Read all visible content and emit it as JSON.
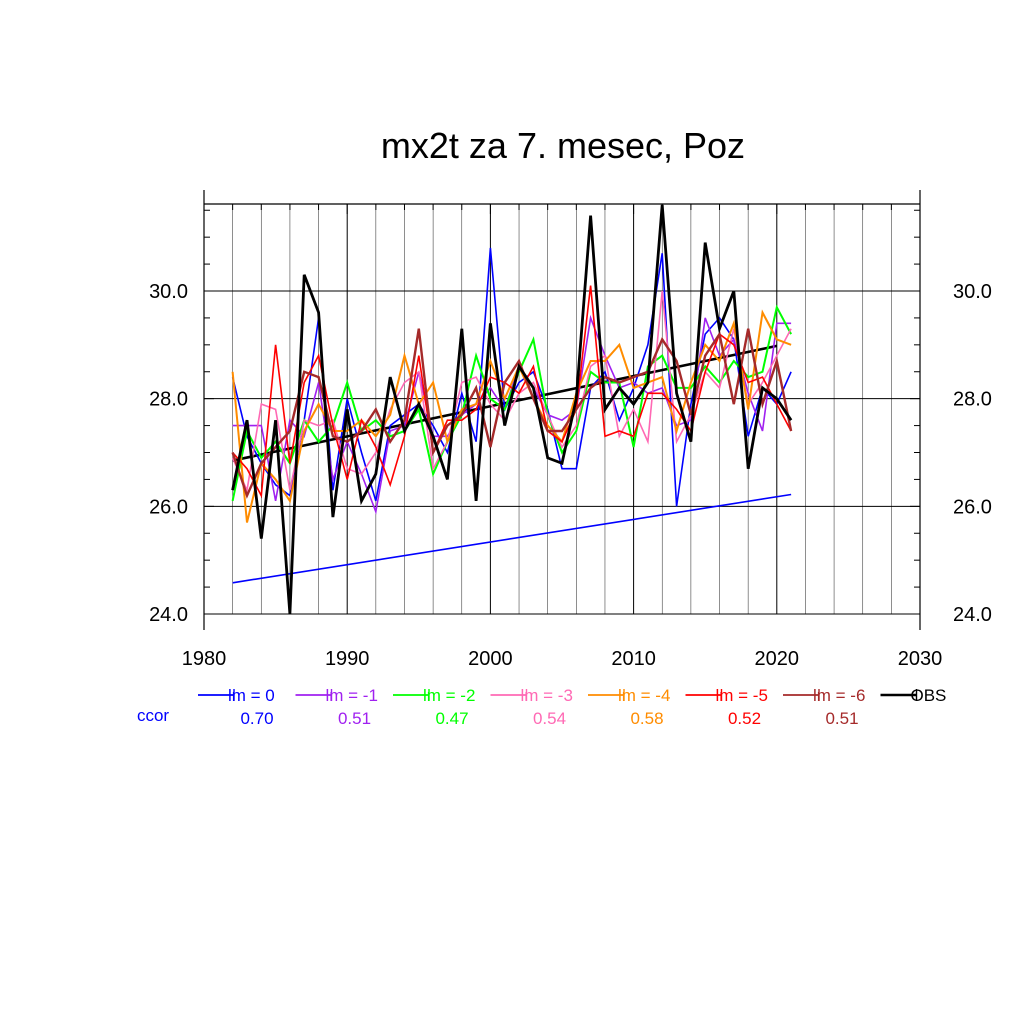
{
  "chart_data": {
    "type": "line",
    "title": "mx2t za 7. mesec, Poz",
    "xlabel": "",
    "ylabel": "",
    "xlim": [
      1980,
      2030
    ],
    "ylim": [
      24.0,
      31.6
    ],
    "x_ticks": [
      1980,
      1990,
      2000,
      2010,
      2020,
      2030
    ],
    "y_ticks": [
      24.0,
      26.0,
      28.0,
      30.0
    ],
    "y_tick_labels": [
      "24.0",
      "26.0",
      "28.0",
      "30.0"
    ],
    "grid": true,
    "x": [
      1982,
      1983,
      1984,
      1985,
      1986,
      1987,
      1988,
      1989,
      1990,
      1991,
      1992,
      1993,
      1994,
      1995,
      1996,
      1997,
      1998,
      1999,
      2000,
      2001,
      2002,
      2003,
      2004,
      2005,
      2006,
      2007,
      2008,
      2009,
      2010,
      2011,
      2012,
      2013,
      2014,
      2015,
      2016,
      2017,
      2018,
      2019,
      2020,
      2021
    ],
    "series": [
      {
        "name": "lm = 0",
        "color": "#0000ff",
        "width": 1.6,
        "values": [
          28.4,
          27.3,
          26.8,
          26.4,
          26.2,
          27.6,
          29.5,
          26.3,
          28.0,
          27.0,
          26.1,
          27.5,
          27.7,
          27.9,
          27.5,
          27.0,
          28.1,
          27.2,
          30.8,
          27.8,
          28.3,
          28.5,
          27.8,
          26.7,
          26.7,
          28.2,
          28.5,
          27.6,
          28.2,
          29.0,
          30.7,
          26.0,
          27.9,
          29.2,
          29.5,
          29.1,
          27.3,
          28.2,
          27.9,
          28.5
        ]
      },
      {
        "name": "lm = -1",
        "color": "#a020f0",
        "width": 1.6,
        "values": [
          27.5,
          27.5,
          27.5,
          26.1,
          27.6,
          27.3,
          28.3,
          26.5,
          27.2,
          26.6,
          25.9,
          27.4,
          27.5,
          28.5,
          27.3,
          27.3,
          27.7,
          27.9,
          28.2,
          27.8,
          28.6,
          28.2,
          27.7,
          27.6,
          27.8,
          29.5,
          28.8,
          28.2,
          28.3,
          28.1,
          28.2,
          27.5,
          27.6,
          29.5,
          28.8,
          29.1,
          28.1,
          27.4,
          29.4,
          29.4
        ]
      },
      {
        "name": "lm = -2",
        "color": "#00ff00",
        "width": 2.0,
        "values": [
          26.1,
          27.4,
          26.9,
          27.2,
          26.8,
          27.6,
          27.2,
          27.5,
          28.3,
          27.4,
          27.6,
          27.3,
          27.4,
          27.8,
          26.6,
          27.2,
          27.7,
          28.8,
          28.0,
          27.8,
          28.5,
          29.1,
          27.7,
          27.0,
          27.4,
          28.5,
          28.3,
          28.3,
          27.1,
          28.6,
          28.8,
          28.2,
          28.2,
          28.6,
          28.3,
          28.7,
          28.4,
          28.5,
          29.7,
          29.2
        ]
      },
      {
        "name": "lm = -3",
        "color": "#ff69b4",
        "width": 1.6,
        "values": [
          26.9,
          26.3,
          27.9,
          27.8,
          26.3,
          27.6,
          27.5,
          27.6,
          26.7,
          26.6,
          27.0,
          27.8,
          28.3,
          28.5,
          26.7,
          27.2,
          28.3,
          28.4,
          27.9,
          27.6,
          28.1,
          28.3,
          27.7,
          27.1,
          27.5,
          28.6,
          28.8,
          27.3,
          27.8,
          27.2,
          30.0,
          27.2,
          27.7,
          28.5,
          28.2,
          29.3,
          27.9,
          28.3,
          28.8,
          29.3
        ]
      },
      {
        "name": "lm = -4",
        "color": "#ff8c00",
        "width": 2.0,
        "values": [
          28.5,
          25.7,
          26.8,
          26.5,
          26.1,
          27.4,
          27.9,
          27.4,
          27.4,
          27.6,
          27.3,
          27.7,
          28.8,
          27.9,
          28.3,
          27.2,
          27.8,
          27.9,
          28.7,
          28.0,
          28.6,
          28.0,
          27.5,
          27.2,
          28.1,
          28.7,
          28.7,
          29.0,
          28.2,
          28.3,
          28.4,
          27.4,
          28.3,
          29.0,
          28.7,
          29.4,
          27.8,
          29.6,
          29.1,
          29.0
        ]
      },
      {
        "name": "lm = -5",
        "color": "#ff0000",
        "width": 1.6,
        "values": [
          27.0,
          26.7,
          26.2,
          29.0,
          26.8,
          28.3,
          28.8,
          27.5,
          26.5,
          27.6,
          27.1,
          26.4,
          27.3,
          28.8,
          27.0,
          27.6,
          27.6,
          27.8,
          28.4,
          28.3,
          28.1,
          28.6,
          27.4,
          27.2,
          27.8,
          30.1,
          27.3,
          27.4,
          27.3,
          28.1,
          28.1,
          27.8,
          27.4,
          28.5,
          29.2,
          29.0,
          28.3,
          28.4,
          27.9,
          27.4
        ]
      },
      {
        "name": "lm = -6",
        "color": "#a52a2a",
        "width": 2.4,
        "values": [
          27.0,
          26.2,
          26.8,
          27.1,
          27.4,
          28.5,
          28.4,
          27.3,
          27.2,
          27.4,
          27.8,
          27.2,
          27.6,
          29.3,
          27.0,
          27.5,
          27.7,
          28.2,
          27.1,
          28.3,
          28.7,
          28.0,
          27.4,
          27.4,
          27.8,
          28.2,
          28.4,
          28.3,
          28.4,
          28.5,
          29.1,
          28.7,
          27.7,
          28.8,
          29.2,
          27.9,
          29.3,
          27.9,
          28.7,
          27.4
        ]
      },
      {
        "name": "OBS",
        "color": "#000000",
        "width": 2.8,
        "values": [
          26.3,
          27.6,
          25.4,
          27.6,
          24.0,
          30.3,
          29.6,
          25.8,
          27.8,
          26.1,
          26.6,
          28.4,
          27.4,
          27.9,
          27.3,
          26.5,
          29.3,
          26.1,
          29.4,
          27.5,
          28.6,
          28.2,
          26.9,
          26.8,
          28.0,
          31.4,
          27.8,
          28.2,
          27.9,
          28.3,
          31.6,
          28.1,
          27.2,
          30.9,
          29.3,
          30.0,
          26.7,
          28.2,
          28.0,
          27.6
        ]
      }
    ],
    "trend_lines": [
      {
        "name": "OBS trend",
        "color": "#000000",
        "x": [
          1982,
          2020
        ],
        "y": [
          26.85,
          28.98
        ]
      },
      {
        "name": "lm = 0 trend",
        "color": "#0000ff",
        "x": [
          1982,
          2021
        ],
        "y": [
          24.58,
          26.22
        ]
      }
    ],
    "legend": {
      "placement": "bottom",
      "entries": [
        {
          "label": "lm = 0",
          "color": "#0000ff"
        },
        {
          "label": "lm = -1",
          "color": "#a020f0"
        },
        {
          "label": "lm = -2",
          "color": "#00ff00"
        },
        {
          "label": "lm = -3",
          "color": "#ff69b4"
        },
        {
          "label": "lm = -4",
          "color": "#ff8c00"
        },
        {
          "label": "lm = -5",
          "color": "#ff0000"
        },
        {
          "label": "lm = -6",
          "color": "#a52a2a"
        },
        {
          "label": "OBS",
          "color": "#000000"
        }
      ]
    },
    "ccor": {
      "label": "ccor",
      "label_color": "#0000ff",
      "values": [
        "0.70",
        "0.51",
        "0.47",
        "0.54",
        "0.58",
        "0.52",
        "0.51"
      ]
    }
  }
}
